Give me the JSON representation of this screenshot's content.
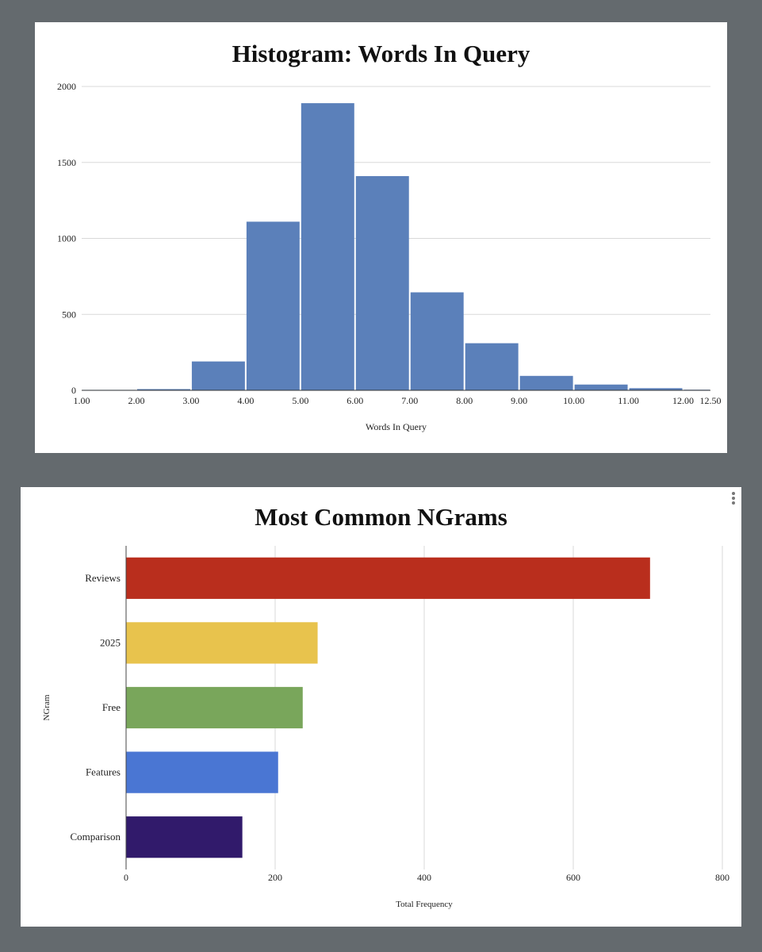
{
  "chart_data": [
    {
      "type": "bar",
      "title": "Histogram: Words In Query",
      "xlabel": "Words In Query",
      "ylabel": "",
      "bins": [
        {
          "from": 1.0,
          "to": 2.0,
          "value": 3
        },
        {
          "from": 2.0,
          "to": 3.0,
          "value": 8
        },
        {
          "from": 3.0,
          "to": 4.0,
          "value": 190
        },
        {
          "from": 4.0,
          "to": 5.0,
          "value": 1110
        },
        {
          "from": 5.0,
          "to": 6.0,
          "value": 1890
        },
        {
          "from": 6.0,
          "to": 7.0,
          "value": 1410
        },
        {
          "from": 7.0,
          "to": 8.0,
          "value": 645
        },
        {
          "from": 8.0,
          "to": 9.0,
          "value": 310
        },
        {
          "from": 9.0,
          "to": 10.0,
          "value": 95
        },
        {
          "from": 10.0,
          "to": 11.0,
          "value": 38
        },
        {
          "from": 11.0,
          "to": 12.0,
          "value": 14
        },
        {
          "from": 12.0,
          "to": 12.5,
          "value": 4
        }
      ],
      "x_ticks": [
        "1.00",
        "2.00",
        "3.00",
        "4.00",
        "5.00",
        "6.00",
        "7.00",
        "8.00",
        "9.00",
        "10.00",
        "11.00",
        "12.00",
        "12.50"
      ],
      "x_tick_values": [
        1,
        2,
        3,
        4,
        5,
        6,
        7,
        8,
        9,
        10,
        11,
        12,
        12.5
      ],
      "xlim": [
        1,
        12.5
      ],
      "y_ticks": [
        "0",
        "500",
        "1000",
        "1500",
        "2000"
      ],
      "y_tick_values": [
        0,
        500,
        1000,
        1500,
        2000
      ],
      "ylim": [
        0,
        2000
      ],
      "grid": true,
      "bar_color": "#5b80ba"
    },
    {
      "type": "bar",
      "orientation": "horizontal",
      "title": "Most Common NGrams",
      "xlabel": "Total Frequency",
      "ylabel": "NGram",
      "categories": [
        "Reviews",
        "2025",
        "Free",
        "Features",
        "Comparison"
      ],
      "values": [
        703,
        257,
        237,
        204,
        156
      ],
      "colors": [
        "#b92e1d",
        "#e8c34d",
        "#79a65b",
        "#4a76d3",
        "#311a6b"
      ],
      "x_ticks": [
        "0",
        "200",
        "400",
        "600",
        "800"
      ],
      "x_tick_values": [
        0,
        200,
        400,
        600,
        800
      ],
      "xlim": [
        0,
        800
      ],
      "grid": true
    }
  ],
  "icons": {
    "menu": "more-vert-icon"
  }
}
